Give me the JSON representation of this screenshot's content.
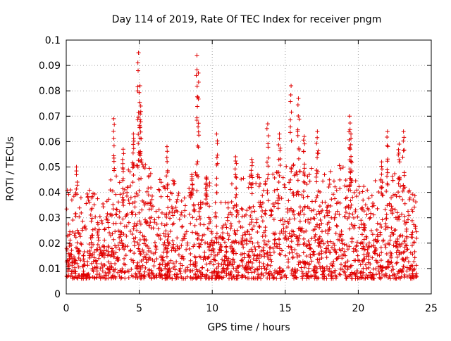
{
  "chart_data": {
    "type": "scatter",
    "title": "Day 114 of 2019, Rate Of TEC Index for receiver pngm",
    "xlabel": "GPS time / hours",
    "ylabel": "ROTI / TECUs",
    "xlim": [
      0,
      25
    ],
    "ylim": [
      0,
      0.1
    ],
    "x_ticks": [
      0,
      5,
      10,
      15,
      20,
      25
    ],
    "x_tick_labels": [
      "0",
      "5",
      "10",
      "15",
      "20",
      "25"
    ],
    "y_ticks": [
      0,
      0.01,
      0.02,
      0.03,
      0.04,
      0.05,
      0.06,
      0.07,
      0.08,
      0.09,
      0.1
    ],
    "y_tick_labels": [
      "0",
      "0.01",
      "0.02",
      "0.03",
      "0.04",
      "0.05",
      "0.06",
      "0.07",
      "0.08",
      "0.09",
      "0.1"
    ],
    "grid": true,
    "marker": "+",
    "series": [
      {
        "name": "ROTI",
        "color": "#e00000",
        "base_profile_hours": [
          0,
          1,
          2,
          3,
          4,
          5,
          6,
          7,
          8,
          9,
          10,
          11,
          12,
          13,
          14,
          15,
          16,
          17,
          18,
          19,
          20,
          21,
          22,
          23,
          24
        ],
        "base_profile_upper_roti": [
          0.03,
          0.028,
          0.03,
          0.033,
          0.037,
          0.045,
          0.035,
          0.033,
          0.035,
          0.036,
          0.033,
          0.031,
          0.034,
          0.036,
          0.037,
          0.04,
          0.04,
          0.037,
          0.037,
          0.04,
          0.034,
          0.033,
          0.035,
          0.036,
          0.028
        ],
        "peaks": [
          {
            "x": 0.7,
            "y": 0.05
          },
          {
            "x": 3.25,
            "y": 0.069
          },
          {
            "x": 3.9,
            "y": 0.057
          },
          {
            "x": 4.6,
            "y": 0.063
          },
          {
            "x": 4.95,
            "y": 0.095
          },
          {
            "x": 5.05,
            "y": 0.082
          },
          {
            "x": 5.1,
            "y": 0.074
          },
          {
            "x": 6.9,
            "y": 0.058
          },
          {
            "x": 8.6,
            "y": 0.047
          },
          {
            "x": 8.95,
            "y": 0.094
          },
          {
            "x": 9.05,
            "y": 0.087
          },
          {
            "x": 9.6,
            "y": 0.046
          },
          {
            "x": 10.3,
            "y": 0.063
          },
          {
            "x": 11.6,
            "y": 0.054
          },
          {
            "x": 12.7,
            "y": 0.053
          },
          {
            "x": 13.8,
            "y": 0.067
          },
          {
            "x": 14.6,
            "y": 0.063
          },
          {
            "x": 15.4,
            "y": 0.082
          },
          {
            "x": 15.9,
            "y": 0.077
          },
          {
            "x": 16.3,
            "y": 0.062
          },
          {
            "x": 17.2,
            "y": 0.064
          },
          {
            "x": 19.4,
            "y": 0.07
          },
          {
            "x": 19.5,
            "y": 0.063
          },
          {
            "x": 21.6,
            "y": 0.052
          },
          {
            "x": 22.0,
            "y": 0.064
          },
          {
            "x": 22.8,
            "y": 0.059
          },
          {
            "x": 23.1,
            "y": 0.064
          }
        ]
      }
    ]
  }
}
